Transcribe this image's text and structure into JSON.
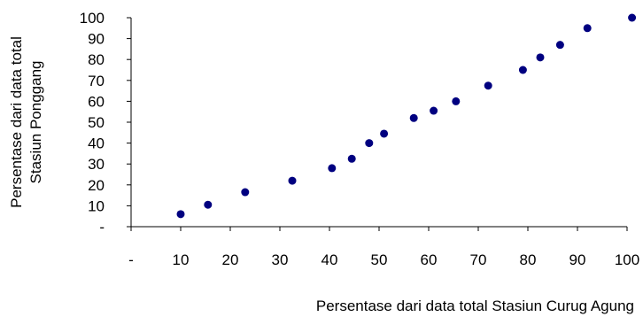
{
  "chart_data": {
    "type": "scatter",
    "xlabel": "Persentase dari data total Stasiun Curug Agung",
    "ylabel_lines": [
      "Persentase dari data total",
      "Stasiun Ponggang"
    ],
    "xlim": [
      0,
      100
    ],
    "ylim": [
      0,
      100
    ],
    "x_ticks": [
      {
        "value": 0,
        "label": "-"
      },
      {
        "value": 10,
        "label": "10"
      },
      {
        "value": 20,
        "label": "20"
      },
      {
        "value": 30,
        "label": "30"
      },
      {
        "value": 40,
        "label": "40"
      },
      {
        "value": 50,
        "label": "50"
      },
      {
        "value": 60,
        "label": "60"
      },
      {
        "value": 70,
        "label": "70"
      },
      {
        "value": 80,
        "label": "80"
      },
      {
        "value": 90,
        "label": "90"
      },
      {
        "value": 100,
        "label": "100"
      }
    ],
    "y_ticks": [
      {
        "value": 0,
        "label": "-"
      },
      {
        "value": 10,
        "label": "10"
      },
      {
        "value": 20,
        "label": "20"
      },
      {
        "value": 30,
        "label": "30"
      },
      {
        "value": 40,
        "label": "40"
      },
      {
        "value": 50,
        "label": "50"
      },
      {
        "value": 60,
        "label": "60"
      },
      {
        "value": 70,
        "label": "70"
      },
      {
        "value": 80,
        "label": "80"
      },
      {
        "value": 90,
        "label": "90"
      },
      {
        "value": 100,
        "label": "100"
      }
    ],
    "grid": false,
    "marker_color": "#000080",
    "points": [
      {
        "x": 10,
        "y": 6
      },
      {
        "x": 15.5,
        "y": 10.5
      },
      {
        "x": 23,
        "y": 16.5
      },
      {
        "x": 32.5,
        "y": 22
      },
      {
        "x": 40.5,
        "y": 28
      },
      {
        "x": 44.5,
        "y": 32.5
      },
      {
        "x": 48,
        "y": 40
      },
      {
        "x": 51,
        "y": 44.5
      },
      {
        "x": 57,
        "y": 52
      },
      {
        "x": 61,
        "y": 55.5
      },
      {
        "x": 65.5,
        "y": 60
      },
      {
        "x": 72,
        "y": 67.5
      },
      {
        "x": 79,
        "y": 75
      },
      {
        "x": 82.5,
        "y": 81
      },
      {
        "x": 86.5,
        "y": 87
      },
      {
        "x": 92,
        "y": 95
      },
      {
        "x": 101,
        "y": 100
      }
    ]
  }
}
